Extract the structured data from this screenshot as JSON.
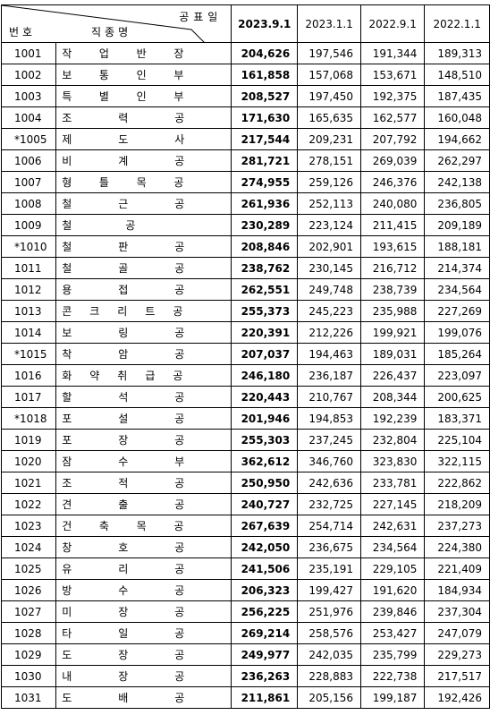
{
  "header": {
    "announce": "공표일",
    "number": "번호",
    "job": "직종명",
    "dates": [
      "2023.9.1",
      "2023.1.1",
      "2022.9.1",
      "2022.1.1"
    ]
  },
  "rows": [
    [
      "1001",
      "작업반장",
      "204,626",
      "197,546",
      "191,344",
      "189,313"
    ],
    [
      "1002",
      "보통인부",
      "161,858",
      "157,068",
      "153,671",
      "148,510"
    ],
    [
      "1003",
      "특별인부",
      "208,527",
      "197,450",
      "192,375",
      "187,435"
    ],
    [
      "1004",
      "조력공",
      "171,630",
      "165,635",
      "162,577",
      "160,048"
    ],
    [
      "*1005",
      "제도사",
      "217,544",
      "209,231",
      "207,792",
      "194,662"
    ],
    [
      "1006",
      "비계공",
      "281,721",
      "278,151",
      "269,039",
      "262,297"
    ],
    [
      "1007",
      "형틀목공",
      "274,955",
      "259,126",
      "246,376",
      "242,138"
    ],
    [
      "1008",
      "철근공",
      "261,936",
      "252,113",
      "240,080",
      "236,805"
    ],
    [
      "1009",
      "철공",
      "230,289",
      "223,124",
      "211,415",
      "209,189"
    ],
    [
      "*1010",
      "철판공",
      "208,846",
      "202,901",
      "193,615",
      "188,181"
    ],
    [
      "1011",
      "철골공",
      "238,762",
      "230,145",
      "216,712",
      "214,374"
    ],
    [
      "1012",
      "용접공",
      "262,551",
      "249,748",
      "238,739",
      "234,564"
    ],
    [
      "1013",
      "콘크리트공",
      "255,373",
      "245,223",
      "235,988",
      "227,269"
    ],
    [
      "1014",
      "보링공",
      "220,391",
      "212,226",
      "199,921",
      "199,076"
    ],
    [
      "*1015",
      "착암공",
      "207,037",
      "194,463",
      "189,031",
      "185,264"
    ],
    [
      "1016",
      "화약취급공",
      "246,180",
      "236,187",
      "226,437",
      "223,097"
    ],
    [
      "1017",
      "할석공",
      "220,443",
      "210,767",
      "208,344",
      "200,625"
    ],
    [
      "*1018",
      "포설공",
      "201,946",
      "194,853",
      "192,239",
      "183,371"
    ],
    [
      "1019",
      "포장공",
      "255,303",
      "237,245",
      "232,804",
      "225,104"
    ],
    [
      "1020",
      "잠수부",
      "362,612",
      "346,760",
      "323,830",
      "322,115"
    ],
    [
      "1021",
      "조적공",
      "250,950",
      "242,636",
      "233,781",
      "222,862"
    ],
    [
      "1022",
      "견출공",
      "240,727",
      "232,725",
      "227,145",
      "218,209"
    ],
    [
      "1023",
      "건축목공",
      "267,639",
      "254,714",
      "242,631",
      "237,273"
    ],
    [
      "1024",
      "창호공",
      "242,050",
      "236,675",
      "234,564",
      "224,380"
    ],
    [
      "1025",
      "유리공",
      "241,506",
      "235,191",
      "229,105",
      "221,409"
    ],
    [
      "1026",
      "방수공",
      "206,323",
      "199,427",
      "191,620",
      "184,934"
    ],
    [
      "1027",
      "미장공",
      "256,225",
      "251,976",
      "239,846",
      "237,304"
    ],
    [
      "1028",
      "타일공",
      "269,214",
      "258,576",
      "253,427",
      "247,079"
    ],
    [
      "1029",
      "도장공",
      "249,977",
      "242,035",
      "235,799",
      "229,273"
    ],
    [
      "1030",
      "내장공",
      "236,263",
      "228,883",
      "222,738",
      "217,517"
    ],
    [
      "1031",
      "도배공",
      "211,861",
      "205,156",
      "199,187",
      "192,426"
    ]
  ]
}
